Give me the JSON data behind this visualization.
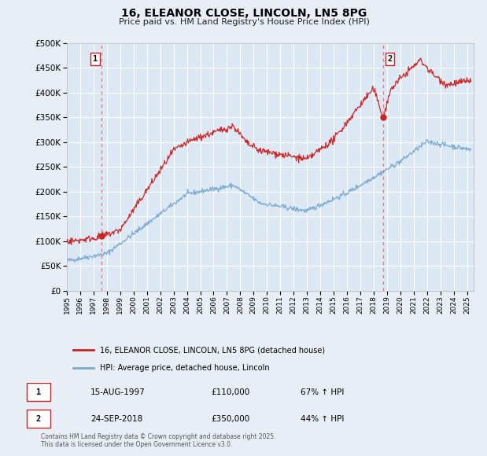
{
  "title": "16, ELEANOR CLOSE, LINCOLN, LN5 8PG",
  "subtitle": "Price paid vs. HM Land Registry's House Price Index (HPI)",
  "bg_color": "#e8eef5",
  "plot_bg_color": "#dce8f4",
  "grid_color": "#ffffff",
  "red_color": "#cc2222",
  "blue_color": "#7aaad0",
  "marker1_date_x": 1997.62,
  "marker1_y": 110000,
  "marker2_date_x": 2018.73,
  "marker2_y": 350000,
  "ylim": [
    0,
    500000
  ],
  "xlim": [
    1995.0,
    2025.5
  ],
  "yticks": [
    0,
    50000,
    100000,
    150000,
    200000,
    250000,
    300000,
    350000,
    400000,
    450000,
    500000
  ],
  "xticks": [
    1995,
    1996,
    1997,
    1998,
    1999,
    2000,
    2001,
    2002,
    2003,
    2004,
    2005,
    2006,
    2007,
    2008,
    2009,
    2010,
    2011,
    2012,
    2013,
    2014,
    2015,
    2016,
    2017,
    2018,
    2019,
    2020,
    2021,
    2022,
    2023,
    2024,
    2025
  ],
  "legend_label_red": "16, ELEANOR CLOSE, LINCOLN, LN5 8PG (detached house)",
  "legend_label_blue": "HPI: Average price, detached house, Lincoln",
  "table_rows": [
    {
      "num": "1",
      "date": "15-AUG-1997",
      "price": "£110,000",
      "hpi": "67% ↑ HPI"
    },
    {
      "num": "2",
      "date": "24-SEP-2018",
      "price": "£350,000",
      "hpi": "44% ↑ HPI"
    }
  ],
  "footnote": "Contains HM Land Registry data © Crown copyright and database right 2025.\nThis data is licensed under the Open Government Licence v3.0.",
  "marker1_label": "1",
  "marker2_label": "2"
}
